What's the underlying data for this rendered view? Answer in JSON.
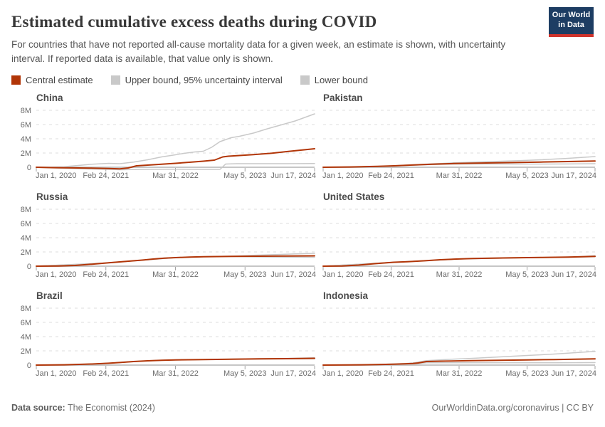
{
  "header": {
    "title": "Estimated cumulative excess deaths during COVID",
    "subtitle": "For countries that have not reported all-cause mortality data for a given week, an estimate is shown, with uncertainty interval. If reported data is available, that value only is shown.",
    "logo": {
      "line1": "Our World",
      "line2": "in Data"
    }
  },
  "legend": [
    {
      "label": "Central estimate",
      "color": "#b13507"
    },
    {
      "label": "Upper bound, 95% uncertainty interval",
      "color": "#c9c9c9"
    },
    {
      "label": "Lower bound",
      "color": "#c9c9c9"
    }
  ],
  "colors": {
    "central": "#b13507",
    "bound": "#c9c9c9",
    "grid": "#dcdcdc",
    "axis": "#c6c6c6",
    "tick": "#a3a3a3",
    "tick_label": "#6b6b6b"
  },
  "axis": {
    "x_tick_labels": [
      "Jan 1, 2020",
      "Feb 24, 2021",
      "Mar 31, 2022",
      "May 5, 2023",
      "Jun 17, 2024"
    ],
    "y_tick_labels": [
      "0",
      "2M",
      "4M",
      "6M",
      "8M"
    ],
    "y_tick_values": [
      0,
      2,
      4,
      6,
      8
    ],
    "y_unit": "deaths, millions",
    "x_unit": "fraction of date range Jan 1, 2020 to Jun 17, 2024"
  },
  "chart_data": [
    {
      "type": "line",
      "title": "China",
      "show_y_axis": true,
      "ylim": [
        0,
        8
      ],
      "series": [
        {
          "name": "Central estimate",
          "x": [
            0,
            0.05,
            0.1,
            0.15,
            0.2,
            0.26,
            0.3,
            0.33,
            0.36,
            0.4,
            0.45,
            0.5,
            0.55,
            0.6,
            0.64,
            0.67,
            0.69,
            0.72,
            0.78,
            0.84,
            0.9,
            0.95,
            1.0
          ],
          "y": [
            0,
            -0.05,
            -0.08,
            -0.1,
            -0.12,
            -0.18,
            -0.22,
            -0.1,
            0.2,
            0.3,
            0.42,
            0.55,
            0.7,
            0.85,
            1.0,
            1.45,
            1.55,
            1.62,
            1.78,
            1.95,
            2.2,
            2.4,
            2.6
          ]
        },
        {
          "name": "Upper bound, 95% uncertainty interval",
          "x": [
            0,
            0.05,
            0.1,
            0.15,
            0.2,
            0.26,
            0.3,
            0.35,
            0.4,
            0.45,
            0.5,
            0.53,
            0.57,
            0.6,
            0.63,
            0.66,
            0.7,
            0.73,
            0.78,
            0.83,
            0.88,
            0.93,
            1.0
          ],
          "y": [
            0,
            0.02,
            0.08,
            0.25,
            0.42,
            0.55,
            0.5,
            0.72,
            1.05,
            1.45,
            1.75,
            1.95,
            2.15,
            2.25,
            2.8,
            3.6,
            4.15,
            4.35,
            4.8,
            5.4,
            5.95,
            6.5,
            7.5
          ]
        },
        {
          "name": "Lower bound",
          "x": [
            0,
            0.1,
            0.2,
            0.26,
            0.3,
            0.4,
            0.5,
            0.6,
            0.66,
            0.68,
            0.72,
            0.8,
            0.9,
            1.0
          ],
          "y": [
            0,
            -0.15,
            -0.25,
            -0.3,
            -0.35,
            -0.3,
            -0.28,
            -0.3,
            -0.3,
            0.45,
            0.5,
            0.5,
            0.5,
            0.52
          ]
        }
      ]
    },
    {
      "type": "line",
      "title": "Pakistan",
      "show_y_axis": false,
      "ylim": [
        0,
        8
      ],
      "series": [
        {
          "name": "Central estimate",
          "x": [
            0,
            0.1,
            0.2,
            0.26,
            0.32,
            0.4,
            0.48,
            0.56,
            0.64,
            0.72,
            0.8,
            0.9,
            1.0
          ],
          "y": [
            0,
            0.04,
            0.12,
            0.2,
            0.3,
            0.42,
            0.52,
            0.58,
            0.63,
            0.68,
            0.73,
            0.8,
            0.88
          ]
        },
        {
          "name": "Upper bound, 95% uncertainty interval",
          "x": [
            0,
            0.1,
            0.2,
            0.26,
            0.32,
            0.4,
            0.48,
            0.56,
            0.64,
            0.72,
            0.8,
            0.9,
            1.0
          ],
          "y": [
            0,
            0.04,
            0.12,
            0.2,
            0.32,
            0.48,
            0.62,
            0.72,
            0.82,
            0.93,
            1.05,
            1.25,
            1.5
          ]
        },
        {
          "name": "Lower bound",
          "x": [
            0,
            0.1,
            0.2,
            0.26,
            0.32,
            0.4,
            0.48,
            0.56,
            0.64,
            0.72,
            0.8,
            0.9,
            1.0
          ],
          "y": [
            0,
            0.04,
            0.1,
            0.17,
            0.27,
            0.38,
            0.44,
            0.46,
            0.46,
            0.45,
            0.45,
            0.46,
            0.5
          ]
        }
      ]
    },
    {
      "type": "line",
      "title": "Russia",
      "show_y_axis": true,
      "ylim": [
        0,
        8
      ],
      "series": [
        {
          "name": "Central estimate",
          "x": [
            0,
            0.08,
            0.14,
            0.2,
            0.26,
            0.3,
            0.34,
            0.38,
            0.42,
            0.46,
            0.5,
            0.55,
            0.6,
            0.7,
            0.8,
            0.9,
            1.0
          ],
          "y": [
            0,
            0.03,
            0.1,
            0.28,
            0.48,
            0.6,
            0.72,
            0.85,
            1.0,
            1.12,
            1.2,
            1.28,
            1.33,
            1.38,
            1.4,
            1.42,
            1.45
          ]
        },
        {
          "name": "Upper bound, 95% uncertainty interval",
          "x": [
            0,
            0.25,
            0.5,
            0.6,
            0.7,
            0.78,
            0.86,
            0.93,
            1.0
          ],
          "y": [
            0,
            0.45,
            1.2,
            1.33,
            1.4,
            1.52,
            1.63,
            1.72,
            1.8
          ]
        },
        {
          "name": "Lower bound",
          "x": [
            0,
            0.25,
            0.5,
            0.6,
            0.7,
            0.8,
            0.9,
            1.0
          ],
          "y": [
            0,
            0.45,
            1.2,
            1.33,
            1.36,
            1.3,
            1.27,
            1.25
          ]
        }
      ]
    },
    {
      "type": "line",
      "title": "United States",
      "show_y_axis": false,
      "ylim": [
        0,
        8
      ],
      "series": [
        {
          "name": "Central estimate",
          "x": [
            0,
            0.07,
            0.13,
            0.19,
            0.26,
            0.31,
            0.37,
            0.43,
            0.49,
            0.55,
            0.62,
            0.7,
            0.8,
            0.9,
            1.0
          ],
          "y": [
            0,
            0.03,
            0.15,
            0.35,
            0.55,
            0.63,
            0.75,
            0.9,
            1.0,
            1.08,
            1.12,
            1.17,
            1.22,
            1.28,
            1.38
          ]
        },
        {
          "name": "Upper bound, 95% uncertainty interval",
          "x": [
            0,
            0.25,
            0.5,
            0.75,
            0.93,
            1.0
          ],
          "y": [
            0,
            0.53,
            1.01,
            1.19,
            1.3,
            1.47
          ]
        },
        {
          "name": "Lower bound",
          "x": [
            0,
            0.25,
            0.5,
            0.75,
            0.93,
            1.0
          ],
          "y": [
            0,
            0.53,
            1.01,
            1.19,
            1.26,
            1.32
          ]
        }
      ]
    },
    {
      "type": "line",
      "title": "Brazil",
      "show_y_axis": true,
      "ylim": [
        0,
        8
      ],
      "series": [
        {
          "name": "Central estimate",
          "x": [
            0,
            0.1,
            0.2,
            0.26,
            0.3,
            0.35,
            0.4,
            0.45,
            0.5,
            0.6,
            0.7,
            0.8,
            0.9,
            1.0
          ],
          "y": [
            0,
            0.04,
            0.15,
            0.26,
            0.36,
            0.5,
            0.6,
            0.68,
            0.73,
            0.78,
            0.83,
            0.87,
            0.9,
            0.95
          ]
        },
        {
          "name": "Upper bound, 95% uncertainty interval",
          "x": [
            0,
            0.1,
            0.2,
            0.26,
            0.3,
            0.35,
            0.4,
            0.45,
            0.5,
            0.6,
            0.7,
            0.8,
            0.9,
            1.0
          ],
          "y": [
            0,
            0.04,
            0.15,
            0.26,
            0.36,
            0.5,
            0.6,
            0.68,
            0.73,
            0.78,
            0.84,
            0.89,
            0.94,
            1.02
          ]
        },
        {
          "name": "Lower bound",
          "x": [
            0,
            0.1,
            0.2,
            0.26,
            0.3,
            0.35,
            0.4,
            0.45,
            0.5,
            0.6,
            0.7,
            0.8,
            0.9,
            1.0
          ],
          "y": [
            0,
            0.04,
            0.15,
            0.26,
            0.36,
            0.5,
            0.6,
            0.68,
            0.73,
            0.77,
            0.82,
            0.85,
            0.87,
            0.9
          ]
        }
      ]
    },
    {
      "type": "line",
      "title": "Indonesia",
      "show_y_axis": false,
      "ylim": [
        0,
        8
      ],
      "series": [
        {
          "name": "Central estimate",
          "x": [
            0,
            0.1,
            0.2,
            0.26,
            0.3,
            0.33,
            0.35,
            0.38,
            0.45,
            0.55,
            0.65,
            0.75,
            0.85,
            1.0
          ],
          "y": [
            0,
            0.02,
            0.07,
            0.12,
            0.17,
            0.22,
            0.3,
            0.5,
            0.56,
            0.62,
            0.68,
            0.73,
            0.78,
            0.88
          ]
        },
        {
          "name": "Upper bound, 95% uncertainty interval",
          "x": [
            0,
            0.1,
            0.2,
            0.26,
            0.3,
            0.33,
            0.35,
            0.38,
            0.45,
            0.55,
            0.65,
            0.75,
            0.85,
            1.0
          ],
          "y": [
            0,
            0.03,
            0.09,
            0.16,
            0.22,
            0.3,
            0.42,
            0.62,
            0.78,
            0.95,
            1.15,
            1.35,
            1.55,
            1.92
          ]
        },
        {
          "name": "Lower bound",
          "x": [
            0,
            0.1,
            0.2,
            0.26,
            0.3,
            0.33,
            0.35,
            0.38,
            0.45,
            0.55,
            0.65,
            0.75,
            0.85,
            1.0
          ],
          "y": [
            0,
            0.01,
            0.04,
            0.08,
            0.11,
            0.14,
            0.2,
            0.32,
            0.33,
            0.33,
            0.33,
            0.33,
            0.33,
            0.35
          ]
        }
      ]
    }
  ],
  "footer": {
    "source_label": "Data source:",
    "source_value": " The Economist (2024)",
    "credit": "OurWorldinData.org/coronavirus | CC BY"
  }
}
